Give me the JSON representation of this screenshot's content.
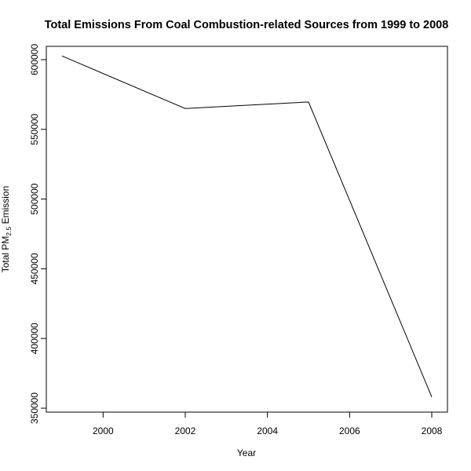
{
  "chart_data": {
    "type": "line",
    "title": "Total Emissions From Coal Combustion-related Sources from 1999 to 2008",
    "xlabel": "Year",
    "ylabel": {
      "prefix": "Total PM",
      "subscript": "2.5",
      "suffix": " Emission"
    },
    "x": [
      1999,
      2002,
      2005,
      2008
    ],
    "series": [
      {
        "values": [
          602624,
          564940,
          569655,
          358084
        ]
      }
    ],
    "xlim": [
      1999,
      2008
    ],
    "ylim": [
      350000,
      600000
    ],
    "x_ticks": [
      2000,
      2002,
      2004,
      2006,
      2008
    ],
    "y_ticks": [
      350000,
      400000,
      450000,
      500000,
      550000,
      600000
    ],
    "x_tick_labels": [
      "2000",
      "2002",
      "2004",
      "2006",
      "2008"
    ],
    "y_tick_labels": [
      "350000",
      "400000",
      "450000",
      "500000",
      "550000",
      "600000"
    ],
    "grid": false,
    "legend": "none",
    "line_color": "#000000"
  }
}
